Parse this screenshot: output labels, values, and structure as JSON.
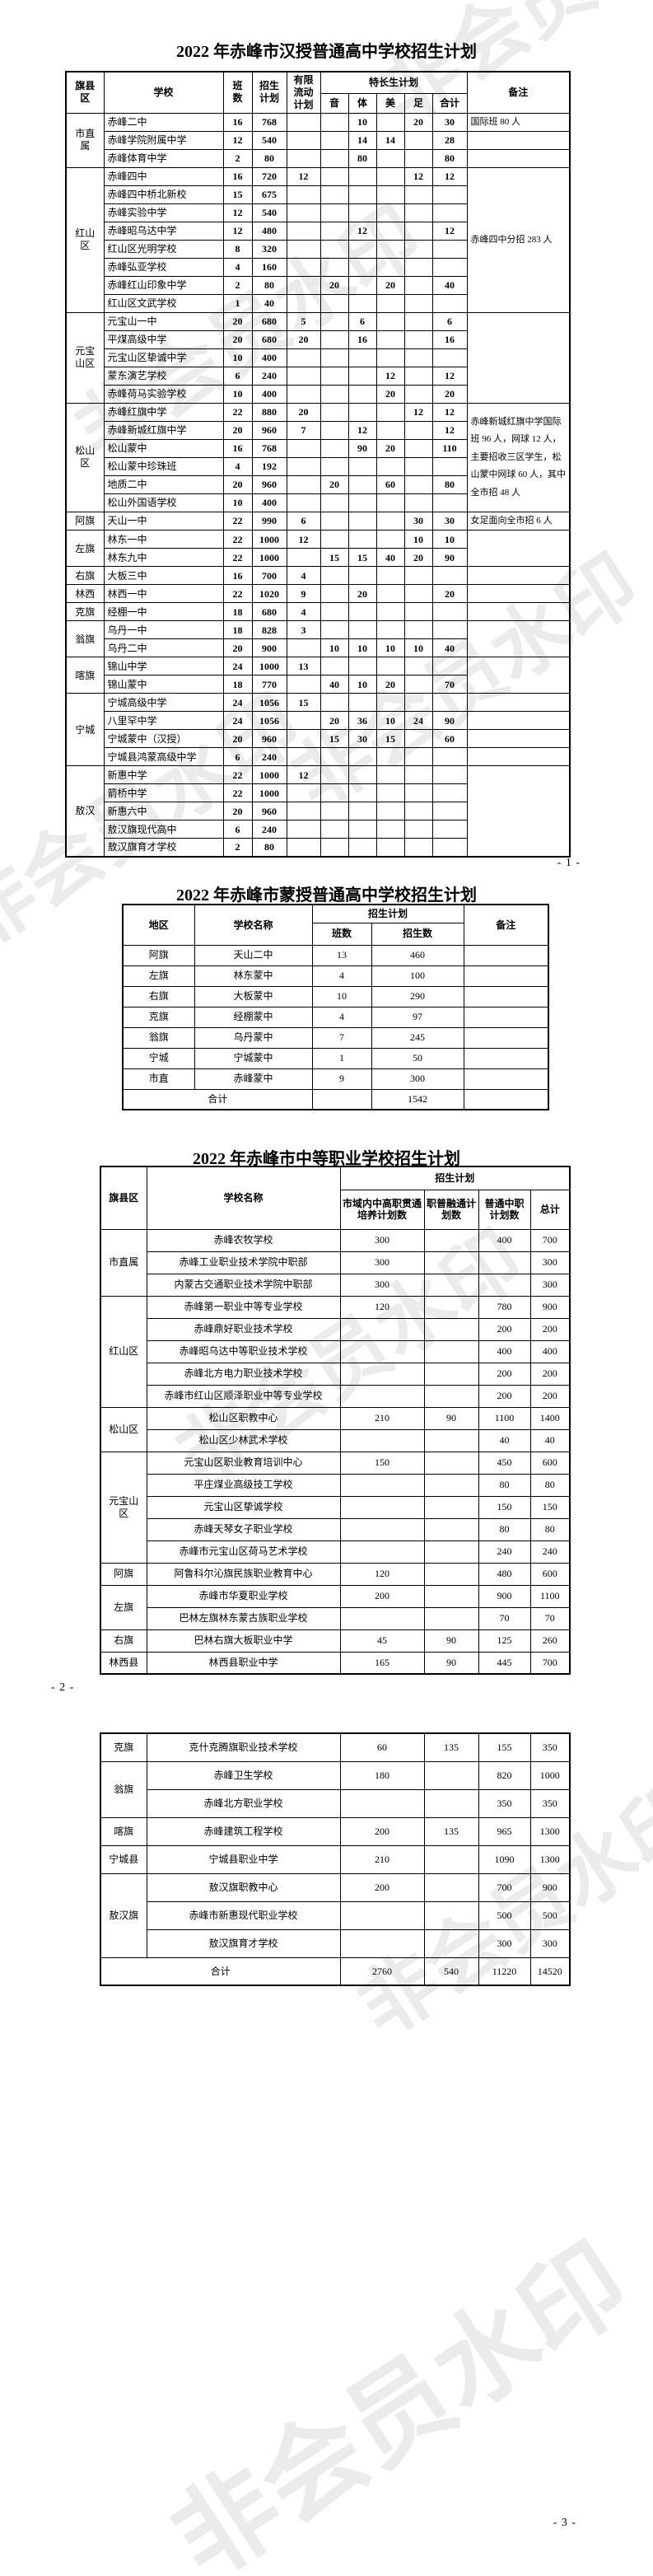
{
  "watermark": {
    "text": "非会员水印"
  },
  "page_numbers": {
    "p1": "- 1 -",
    "p2": "- 2 -",
    "p3": "- 3 -"
  },
  "table1": {
    "title": "2022 年赤峰市汉授普通高中学校招生计划",
    "headers": {
      "region": "旗县区",
      "school": "学校",
      "classes": "班数",
      "plan": "招生计划",
      "flow": "有限流动计划",
      "special": "特长生计划",
      "music": "音",
      "pe": "体",
      "art": "美",
      "foot": "足",
      "subtotal": "合计",
      "remark": "备注"
    },
    "groups": [
      {
        "region": "市直属",
        "remark": null,
        "rows": [
          [
            "赤峰二中",
            "16",
            "768",
            "",
            "",
            "10",
            "",
            "20",
            "30",
            "国际班 80 人"
          ],
          [
            "赤峰学院附属中学",
            "12",
            "540",
            "",
            "",
            "14",
            "14",
            "",
            "28",
            ""
          ],
          [
            "赤峰体育中学",
            "2",
            "80",
            "",
            "",
            "80",
            "",
            "",
            "80",
            ""
          ]
        ]
      },
      {
        "region": "红山区",
        "remark": "赤峰四中分招 283 人",
        "rows": [
          [
            "赤峰四中",
            "16",
            "720",
            "12",
            "",
            "",
            "",
            "12",
            "12"
          ],
          [
            "赤峰四中桥北新校",
            "15",
            "675",
            "",
            "",
            "",
            "",
            "",
            ""
          ],
          [
            "赤峰实验中学",
            "12",
            "540",
            "",
            "",
            "",
            "",
            "",
            ""
          ],
          [
            "赤峰昭乌达中学",
            "12",
            "480",
            "",
            "",
            "12",
            "",
            "",
            "12"
          ],
          [
            "红山区光明学校",
            "8",
            "320",
            "",
            "",
            "",
            "",
            "",
            ""
          ],
          [
            "赤峰弘亚学校",
            "4",
            "160",
            "",
            "",
            "",
            "",
            "",
            ""
          ],
          [
            "赤峰红山印象中学",
            "2",
            "80",
            "",
            "20",
            "",
            "20",
            "",
            "40"
          ],
          [
            "红山区文武学校",
            "1",
            "40",
            "",
            "",
            "",
            "",
            "",
            ""
          ]
        ]
      },
      {
        "region": "元宝山区",
        "remark": "",
        "rows": [
          [
            "元宝山一中",
            "20",
            "680",
            "5",
            "",
            "6",
            "",
            "",
            "6"
          ],
          [
            "平煤高级中学",
            "20",
            "680",
            "20",
            "",
            "16",
            "",
            "",
            "16"
          ],
          [
            "元宝山区挚诚中学",
            "10",
            "400",
            "",
            "",
            "",
            "",
            "",
            ""
          ],
          [
            "蒙东演艺学校",
            "6",
            "240",
            "",
            "",
            "",
            "12",
            "",
            "12"
          ],
          [
            "赤峰荷马实验学校",
            "10",
            "400",
            "",
            "",
            "",
            "20",
            "",
            "20"
          ]
        ]
      },
      {
        "region": "松山区",
        "remark": "赤峰新城红旗中学国际班 96 人，网球 12 人，主要招收三区学生，松山蒙中网球 60 人，其中全市招 48 人",
        "rows": [
          [
            "赤峰红旗中学",
            "22",
            "880",
            "20",
            "",
            "",
            "",
            "12",
            "12"
          ],
          [
            "赤峰新城红旗中学",
            "20",
            "960",
            "7",
            "",
            "12",
            "",
            "",
            "12"
          ],
          [
            "松山蒙中",
            "16",
            "768",
            "",
            "",
            "90",
            "20",
            "",
            "110"
          ],
          [
            "松山蒙中珍珠班",
            "4",
            "192",
            "",
            "",
            "",
            "",
            "",
            ""
          ],
          [
            "地质二中",
            "20",
            "960",
            "",
            "20",
            "",
            "60",
            "",
            "80"
          ],
          [
            "松山外国语学校",
            "10",
            "400",
            "",
            "",
            "",
            "",
            "",
            ""
          ]
        ]
      },
      {
        "region": "阿旗",
        "remark": null,
        "rows": [
          [
            "天山一中",
            "22",
            "990",
            "6",
            "",
            "",
            "",
            "30",
            "30",
            "女足面向全市招 6 人"
          ]
        ]
      },
      {
        "region": "左旗",
        "remark": "",
        "rows": [
          [
            "林东一中",
            "22",
            "1000",
            "12",
            "",
            "",
            "",
            "10",
            "10"
          ],
          [
            "林东九中",
            "22",
            "1000",
            "",
            "15",
            "15",
            "40",
            "20",
            "90"
          ]
        ]
      },
      {
        "region": "右旗",
        "remark": null,
        "rows": [
          [
            "大板三中",
            "16",
            "700",
            "4",
            "",
            "",
            "",
            "",
            "",
            ""
          ]
        ]
      },
      {
        "region": "林西",
        "remark": null,
        "rows": [
          [
            "林西一中",
            "22",
            "1020",
            "9",
            "",
            "20",
            "",
            "",
            "20",
            ""
          ]
        ]
      },
      {
        "region": "克旗",
        "remark": null,
        "rows": [
          [
            "经棚一中",
            "18",
            "680",
            "4",
            "",
            "",
            "",
            "",
            "",
            ""
          ]
        ]
      },
      {
        "region": "翁旗",
        "remark": "",
        "rows": [
          [
            "乌丹一中",
            "18",
            "828",
            "3",
            "",
            "",
            "",
            "",
            ""
          ],
          [
            "乌丹二中",
            "20",
            "900",
            "",
            "10",
            "10",
            "10",
            "10",
            "40"
          ]
        ]
      },
      {
        "region": "喀旗",
        "remark": "",
        "rows": [
          [
            "锦山中学",
            "24",
            "1000",
            "13",
            "",
            "",
            "",
            "",
            ""
          ],
          [
            "锦山蒙中",
            "18",
            "770",
            "",
            "40",
            "10",
            "20",
            "",
            "70"
          ]
        ]
      },
      {
        "region": "宁城",
        "remark": null,
        "rows": [
          [
            "宁城高级中学",
            "24",
            "1056",
            "15",
            "",
            "",
            "",
            "",
            "",
            ""
          ],
          [
            "八里罕中学",
            "24",
            "1056",
            "",
            "20",
            "36",
            "10",
            "24",
            "90",
            ""
          ],
          [
            "宁城蒙中（汉授）",
            "20",
            "960",
            "",
            "15",
            "30",
            "15",
            "",
            "60",
            ""
          ],
          [
            "宁城县鸿蒙高级中学",
            "6",
            "240",
            "",
            "",
            "",
            "",
            "",
            "",
            ""
          ]
        ]
      },
      {
        "region": "敖汉",
        "remark": "",
        "rows": [
          [
            "新惠中学",
            "22",
            "1000",
            "12",
            "",
            "",
            "",
            "",
            ""
          ],
          [
            "箭桥中学",
            "22",
            "1000",
            "",
            "",
            "",
            "",
            "",
            ""
          ],
          [
            "新惠六中",
            "20",
            "960",
            "",
            "",
            "",
            "",
            "",
            ""
          ],
          [
            "敖汉旗现代高中",
            "6",
            "240",
            "",
            "",
            "",
            "",
            "",
            ""
          ],
          [
            "敖汉旗育才学校",
            "2",
            "80",
            "",
            "",
            "",
            "",
            "",
            ""
          ]
        ]
      }
    ]
  },
  "table2": {
    "title": "2022 年赤峰市蒙授普通高中学校招生计划",
    "headers": {
      "region": "地区",
      "school": "学校名称",
      "plan": "招生计划",
      "classes": "班数",
      "count": "招生数",
      "remark": "备注"
    },
    "rows": [
      [
        "阿旗",
        "天山二中",
        "13",
        "460",
        ""
      ],
      [
        "左旗",
        "林东蒙中",
        "4",
        "100",
        ""
      ],
      [
        "右旗",
        "大板蒙中",
        "10",
        "290",
        ""
      ],
      [
        "克旗",
        "经棚蒙中",
        "4",
        "97",
        ""
      ],
      [
        "翁旗",
        "乌丹蒙中",
        "7",
        "245",
        ""
      ],
      [
        "宁城",
        "宁城蒙中",
        "1",
        "50",
        ""
      ],
      [
        "市直",
        "赤峰蒙中",
        "9",
        "300",
        ""
      ]
    ],
    "total": {
      "label": "合计",
      "classes": "",
      "count": "1542",
      "remark": ""
    }
  },
  "table3": {
    "title": "2022 年赤峰市中等职业学校招生计划",
    "headers": {
      "region": "旗县区",
      "school": "学校名称",
      "plan": "招生计划",
      "col1": "市域内中高职贯通培养计划数",
      "col2": "职普融通计划数",
      "col3": "普通中职计划数",
      "total": "总计"
    },
    "part1_groups": [
      {
        "region": "市直属",
        "rows": [
          [
            "赤峰农牧学校",
            "300",
            "",
            "400",
            "700"
          ],
          [
            "赤峰工业职业技术学院中职部",
            "300",
            "",
            "",
            "300"
          ],
          [
            "内蒙古交通职业技术学院中职部",
            "300",
            "",
            "",
            "300"
          ]
        ]
      },
      {
        "region": "红山区",
        "rows": [
          [
            "赤峰第一职业中等专业学校",
            "120",
            "",
            "780",
            "900"
          ],
          [
            "赤峰鼎好职业技术学校",
            "",
            "",
            "200",
            "200"
          ],
          [
            "赤峰昭乌达中等职业技术学校",
            "",
            "",
            "400",
            "400"
          ],
          [
            "赤峰北方电力职业技术学校",
            "",
            "",
            "200",
            "200"
          ],
          [
            "赤峰市红山区顺泽职业中等专业学校",
            "",
            "",
            "200",
            "200"
          ]
        ]
      },
      {
        "region": "松山区",
        "rows": [
          [
            "松山区职教中心",
            "210",
            "90",
            "1100",
            "1400"
          ],
          [
            "松山区少林武术学校",
            "",
            "",
            "40",
            "40"
          ]
        ]
      },
      {
        "region": "元宝山区",
        "rows": [
          [
            "元宝山区职业教育培训中心",
            "150",
            "",
            "450",
            "600"
          ],
          [
            "平庄煤业高级技工学校",
            "",
            "",
            "80",
            "80"
          ],
          [
            "元宝山区挚诚学校",
            "",
            "",
            "150",
            "150"
          ],
          [
            "赤峰天琴女子职业学校",
            "",
            "",
            "80",
            "80"
          ],
          [
            "赤峰市元宝山区荷马艺术学校",
            "",
            "",
            "240",
            "240"
          ]
        ]
      },
      {
        "region": "阿旗",
        "rows": [
          [
            "阿鲁科尔沁旗民族职业教育中心",
            "120",
            "",
            "480",
            "600"
          ]
        ]
      },
      {
        "region": "左旗",
        "rows": [
          [
            "赤峰市华夏职业学校",
            "200",
            "",
            "900",
            "1100"
          ],
          [
            "巴林左旗林东蒙古族职业学校",
            "",
            "",
            "70",
            "70"
          ]
        ]
      },
      {
        "region": "右旗",
        "rows": [
          [
            "巴林右旗大板职业中学",
            "45",
            "90",
            "125",
            "260"
          ]
        ]
      },
      {
        "region": "林西县",
        "rows": [
          [
            "林西县职业中学",
            "165",
            "90",
            "445",
            "700"
          ]
        ]
      }
    ],
    "part2_groups": [
      {
        "region": "克旗",
        "rows": [
          [
            "克什克腾旗职业技术学校",
            "60",
            "135",
            "155",
            "350"
          ]
        ]
      },
      {
        "region": "翁旗",
        "rows": [
          [
            "赤峰卫生学校",
            "180",
            "",
            "820",
            "1000"
          ],
          [
            "赤峰北方职业学校",
            "",
            "",
            "350",
            "350"
          ]
        ]
      },
      {
        "region": "喀旗",
        "rows": [
          [
            "赤峰建筑工程学校",
            "200",
            "135",
            "965",
            "1300"
          ]
        ]
      },
      {
        "region": "宁城县",
        "rows": [
          [
            "宁城县职业中学",
            "210",
            "",
            "1090",
            "1300"
          ]
        ]
      },
      {
        "region": "敖汉旗",
        "rows": [
          [
            "敖汉旗职教中心",
            "200",
            "",
            "700",
            "900"
          ],
          [
            "赤峰市新惠现代职业学校",
            "",
            "",
            "500",
            "500"
          ],
          [
            "敖汉旗育才学校",
            "",
            "",
            "300",
            "300"
          ]
        ]
      }
    ],
    "total": {
      "label": "合计",
      "values": [
        "2760",
        "540",
        "11220",
        "14520"
      ]
    }
  }
}
